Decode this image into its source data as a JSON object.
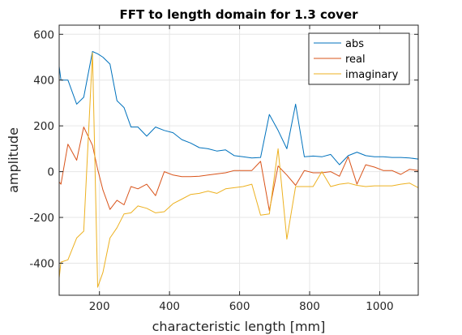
{
  "chart_data": {
    "type": "line",
    "title": "FFT to length domain for 1.3 cover",
    "xlabel": "characteristic length [mm]",
    "ylabel": "amplitude",
    "xlim": [
      85,
      1110
    ],
    "ylim": [
      -540,
      640
    ],
    "xticks": [
      200,
      400,
      600,
      800,
      1000
    ],
    "yticks": [
      -400,
      -200,
      0,
      200,
      400,
      600
    ],
    "grid": true,
    "legend_position": "top-right",
    "x": [
      85,
      90,
      110,
      135,
      155,
      180,
      195,
      210,
      230,
      250,
      270,
      290,
      310,
      335,
      360,
      385,
      410,
      435,
      460,
      485,
      510,
      535,
      560,
      585,
      610,
      635,
      660,
      685,
      710,
      735,
      760,
      785,
      810,
      835,
      860,
      885,
      910,
      935,
      960,
      985,
      1010,
      1035,
      1060,
      1085,
      1110
    ],
    "series": [
      {
        "name": "abs",
        "color": "#0072BD",
        "values": [
          460,
          400,
          400,
          295,
          325,
          525,
          515,
          500,
          470,
          310,
          280,
          195,
          195,
          155,
          195,
          180,
          170,
          140,
          125,
          105,
          100,
          90,
          95,
          70,
          65,
          60,
          62,
          250,
          180,
          100,
          295,
          65,
          68,
          65,
          75,
          30,
          70,
          85,
          70,
          65,
          65,
          62,
          62,
          60,
          55
        ]
      },
      {
        "name": "real",
        "color": "#D95319",
        "values": [
          -45,
          -55,
          120,
          50,
          195,
          115,
          10,
          -80,
          -165,
          -125,
          -145,
          -65,
          -75,
          -55,
          -105,
          0,
          -15,
          -22,
          -22,
          -20,
          -15,
          -10,
          -5,
          5,
          5,
          5,
          45,
          -170,
          25,
          -15,
          -60,
          5,
          -5,
          -5,
          0,
          -20,
          65,
          -55,
          30,
          20,
          5,
          5,
          -12,
          10,
          5
        ]
      },
      {
        "name": "imaginary",
        "color": "#EDB120",
        "values": [
          -465,
          -395,
          -385,
          -290,
          -260,
          520,
          -505,
          -440,
          -290,
          -245,
          -185,
          -180,
          -150,
          -160,
          -180,
          -175,
          -140,
          -120,
          -100,
          -95,
          -85,
          -95,
          -75,
          -70,
          -65,
          -55,
          -190,
          -185,
          100,
          -295,
          -65,
          -65,
          -65,
          0,
          -65,
          -55,
          -50,
          -60,
          -65,
          -62,
          -62,
          -62,
          -55,
          -50,
          -70
        ]
      }
    ]
  }
}
